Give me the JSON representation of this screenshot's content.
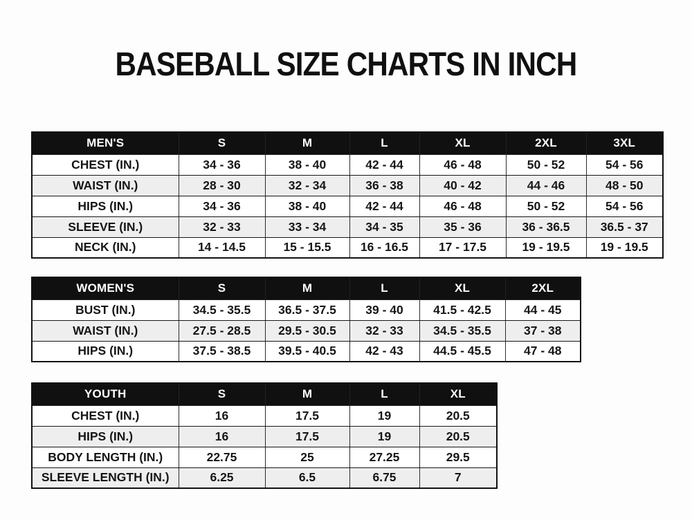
{
  "page": {
    "title": "BASEBALL SIZE CHARTS IN INCH"
  },
  "colors": {
    "header_bg": "#101010",
    "header_text": "#ffffff",
    "row_bg": "#ffffff",
    "row_alt_bg": "#eeeeee",
    "border": "#1c1c1c",
    "page_bg": "#fdfdfd"
  },
  "chart_data": [
    {
      "type": "table",
      "title": "MEN'S",
      "columns": [
        "S",
        "M",
        "L",
        "XL",
        "2XL",
        "3XL"
      ],
      "rows": [
        {
          "label": "CHEST (IN.)",
          "values": [
            "34 - 36",
            "38 - 40",
            "42 - 44",
            "46 - 48",
            "50 - 52",
            "54 - 56"
          ]
        },
        {
          "label": "WAIST (IN.)",
          "values": [
            "28 - 30",
            "32 - 34",
            "36 - 38",
            "40 - 42",
            "44 - 46",
            "48 - 50"
          ]
        },
        {
          "label": "HIPS (IN.)",
          "values": [
            "34 - 36",
            "38 - 40",
            "42 - 44",
            "46 - 48",
            "50 - 52",
            "54 - 56"
          ]
        },
        {
          "label": "SLEEVE (IN.)",
          "values": [
            "32 - 33",
            "33 - 34",
            "34 - 35",
            "35 - 36",
            "36 - 36.5",
            "36.5 - 37"
          ]
        },
        {
          "label": "NECK (IN.)",
          "values": [
            "14 - 14.5",
            "15 - 15.5",
            "16 - 16.5",
            "17 - 17.5",
            "19 - 19.5",
            "19 - 19.5"
          ]
        }
      ]
    },
    {
      "type": "table",
      "title": "WOMEN'S",
      "columns": [
        "S",
        "M",
        "L",
        "XL",
        "2XL"
      ],
      "rows": [
        {
          "label": "BUST (IN.)",
          "values": [
            "34.5 - 35.5",
            "36.5 - 37.5",
            "39 - 40",
            "41.5 - 42.5",
            "44 - 45"
          ]
        },
        {
          "label": "WAIST (IN.)",
          "values": [
            "27.5 - 28.5",
            "29.5 - 30.5",
            "32 - 33",
            "34.5 - 35.5",
            "37 - 38"
          ]
        },
        {
          "label": "HIPS (IN.)",
          "values": [
            "37.5 - 38.5",
            "39.5 - 40.5",
            "42 - 43",
            "44.5 - 45.5",
            "47 - 48"
          ]
        }
      ]
    },
    {
      "type": "table",
      "title": "YOUTH",
      "columns": [
        "S",
        "M",
        "L",
        "XL"
      ],
      "rows": [
        {
          "label": "CHEST (IN.)",
          "values": [
            "16",
            "17.5",
            "19",
            "20.5"
          ]
        },
        {
          "label": "HIPS (IN.)",
          "values": [
            "16",
            "17.5",
            "19",
            "20.5"
          ]
        },
        {
          "label": "BODY LENGTH (IN.)",
          "values": [
            "22.75",
            "25",
            "27.25",
            "29.5"
          ]
        },
        {
          "label": "SLEEVE LENGTH (IN.)",
          "values": [
            "6.25",
            "6.5",
            "6.75",
            "7"
          ]
        }
      ]
    }
  ]
}
